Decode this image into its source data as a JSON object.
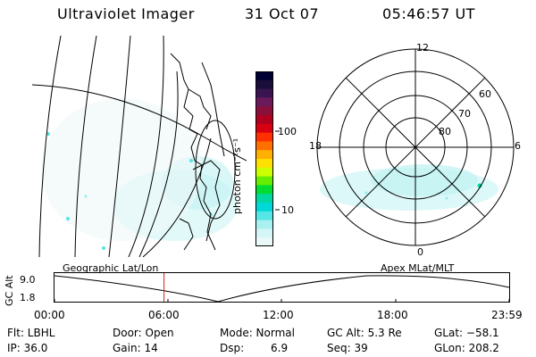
{
  "header": {
    "instrument": "Ultraviolet Imager",
    "date": "31 Oct 07",
    "time": "05:46:57 UT"
  },
  "colorbar": {
    "unit_label": "photon cm⁻²s⁻¹",
    "ticks": [
      "100",
      "10"
    ],
    "colors": [
      "#000033",
      "#1a0f3a",
      "#3a1450",
      "#6a1a5a",
      "#8a0f3a",
      "#b00020",
      "#d80010",
      "#ff3000",
      "#ff7000",
      "#ffb000",
      "#ffe000",
      "#ccff00",
      "#66ee00",
      "#00dd30",
      "#00d8a0",
      "#00d8d8",
      "#55e6e6",
      "#a9f0f0",
      "#d4f6f6",
      "#eaf8f8"
    ]
  },
  "polar": {
    "mlt_labels": {
      "top": "12",
      "bottom": "0",
      "left": "18",
      "right": "6"
    },
    "lat_labels": [
      "60",
      "70",
      "80"
    ]
  },
  "altitude_plot": {
    "ylabel": "GC Alt",
    "y_ticks": [
      "9.0",
      "1.8"
    ],
    "x_ticks": [
      "00:00",
      "06:00",
      "12:00",
      "18:00",
      "23:59"
    ],
    "left_title": "Geographic Lat/Lon",
    "right_title": "Apex MLat/MLT",
    "current_time_marker_hours": 5.78
  },
  "info": {
    "flt": "Flt: LBHL",
    "ip": "IP: 36.0",
    "door": "Door: Open",
    "gain": "Gain: 14",
    "mode": "Mode: Normal",
    "dsp": "Dsp:",
    "dsp_value": "6.9",
    "gc_alt": "GC Alt: 5.3 Re",
    "seq": "Seq: 39",
    "glat": "GLat: −58.1",
    "glon": "GLon: 208.2"
  }
}
